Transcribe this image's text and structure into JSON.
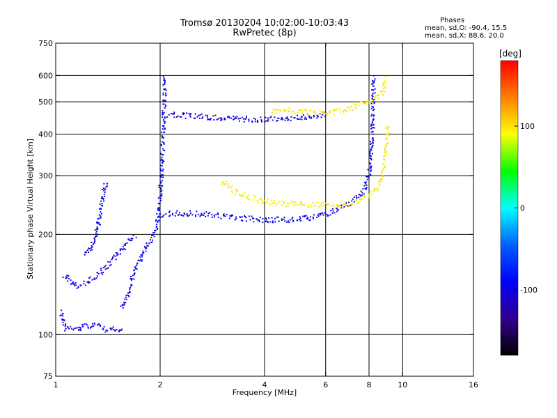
{
  "title": "Tromsø 20130204 10:02:00-10:03:43",
  "subtitle": "RwPretec (8p)",
  "phases": {
    "heading": "Phases",
    "o_line": "mean, sd,O: -90.4, 15.5",
    "x_line": "mean, sd,X: 88.6, 20.0"
  },
  "colorbar": {
    "label": "[deg]",
    "range": [
      -180,
      180
    ],
    "ticks": [
      {
        "value": 100,
        "label": "100"
      },
      {
        "value": 0,
        "label": "0"
      },
      {
        "value": -100,
        "label": "-100"
      }
    ],
    "colors": [
      "#ff0000",
      "#ff8000",
      "#ffff00",
      "#00ff00",
      "#00ffff",
      "#0060ff",
      "#0000ff",
      "#300090",
      "#000000"
    ]
  },
  "chart_data": {
    "type": "scatter",
    "xlabel": "Frequency [MHz]",
    "ylabel": "Stationary phase Virtual Height [km]",
    "xscale": "log",
    "yscale": "log",
    "xlim": [
      1,
      16
    ],
    "ylim": [
      75,
      750
    ],
    "x_ticks": [
      {
        "value": 1,
        "label": "1"
      },
      {
        "value": 2,
        "label": "2"
      },
      {
        "value": 4,
        "label": "4"
      },
      {
        "value": 6,
        "label": "6"
      },
      {
        "value": 8,
        "label": "8"
      },
      {
        "value": 10,
        "label": "10"
      },
      {
        "value": 16,
        "label": "16"
      }
    ],
    "y_ticks": [
      {
        "value": 75,
        "label": "75"
      },
      {
        "value": 100,
        "label": "100"
      },
      {
        "value": 200,
        "label": "200"
      },
      {
        "value": 300,
        "label": "300"
      },
      {
        "value": 400,
        "label": "400"
      },
      {
        "value": 500,
        "label": "500"
      },
      {
        "value": 600,
        "label": "600"
      },
      {
        "value": 750,
        "label": "750"
      }
    ],
    "grid_x": [
      2,
      4,
      6,
      8,
      10
    ],
    "grid_y": [
      100,
      200,
      300,
      400,
      500,
      600
    ],
    "series": [
      {
        "phase": -105,
        "points": [
          [
            1.03,
            118
          ],
          [
            1.06,
            104
          ],
          [
            1.1,
            105
          ],
          [
            1.15,
            104
          ],
          [
            1.2,
            108
          ],
          [
            1.25,
            106
          ],
          [
            1.3,
            108
          ],
          [
            1.35,
            105
          ],
          [
            1.4,
            104
          ],
          [
            1.45,
            104
          ],
          [
            1.5,
            103
          ],
          [
            1.55,
            102
          ]
        ]
      },
      {
        "phase": -100,
        "points": [
          [
            1.05,
            152
          ],
          [
            1.1,
            145
          ],
          [
            1.15,
            140
          ],
          [
            1.2,
            143
          ],
          [
            1.25,
            146
          ],
          [
            1.3,
            150
          ],
          [
            1.35,
            155
          ],
          [
            1.4,
            160
          ],
          [
            1.45,
            168
          ],
          [
            1.5,
            175
          ],
          [
            1.55,
            182
          ],
          [
            1.6,
            190
          ],
          [
            1.65,
            197
          ],
          [
            1.7,
            200
          ]
        ]
      },
      {
        "phase": -100,
        "points": [
          [
            1.2,
            175
          ],
          [
            1.25,
            180
          ],
          [
            1.28,
            190
          ],
          [
            1.32,
            215
          ],
          [
            1.35,
            250
          ],
          [
            1.38,
            280
          ],
          [
            1.4,
            290
          ]
        ]
      },
      {
        "phase": -95,
        "points": [
          [
            1.55,
            120
          ],
          [
            1.6,
            130
          ],
          [
            1.65,
            145
          ],
          [
            1.7,
            160
          ],
          [
            1.75,
            170
          ],
          [
            1.8,
            180
          ],
          [
            1.85,
            190
          ],
          [
            1.9,
            200
          ],
          [
            1.95,
            215
          ],
          [
            1.98,
            240
          ],
          [
            2.0,
            280
          ],
          [
            2.02,
            330
          ],
          [
            2.03,
            380
          ],
          [
            2.04,
            450
          ],
          [
            2.05,
            520
          ],
          [
            2.05,
            600
          ]
        ]
      },
      {
        "phase": -100,
        "points": [
          [
            2.0,
            230
          ],
          [
            2.2,
            232
          ],
          [
            2.5,
            232
          ],
          [
            2.8,
            230
          ],
          [
            3.0,
            228
          ],
          [
            3.5,
            224
          ],
          [
            4.0,
            222
          ],
          [
            4.5,
            222
          ],
          [
            5.0,
            223
          ],
          [
            5.5,
            226
          ],
          [
            6.0,
            232
          ],
          [
            6.5,
            240
          ],
          [
            7.0,
            250
          ],
          [
            7.5,
            262
          ],
          [
            7.8,
            280
          ],
          [
            8.0,
            310
          ],
          [
            8.1,
            360
          ],
          [
            8.15,
            420
          ],
          [
            8.2,
            500
          ],
          [
            8.2,
            600
          ]
        ]
      },
      {
        "phase": -105,
        "points": [
          [
            2.1,
            460
          ],
          [
            2.5,
            455
          ],
          [
            2.8,
            452
          ],
          [
            3.2,
            448
          ],
          [
            3.6,
            445
          ],
          [
            4.0,
            445
          ],
          [
            4.5,
            448
          ],
          [
            5.0,
            452
          ],
          [
            5.5,
            455
          ],
          [
            6.0,
            460
          ]
        ]
      },
      {
        "phase": 95,
        "points": [
          [
            3.0,
            290
          ],
          [
            3.3,
            270
          ],
          [
            3.6,
            260
          ],
          [
            4.0,
            253
          ],
          [
            4.5,
            248
          ],
          [
            5.0,
            247
          ],
          [
            5.5,
            247
          ],
          [
            6.0,
            246
          ],
          [
            6.5,
            245
          ],
          [
            7.0,
            248
          ],
          [
            7.5,
            255
          ],
          [
            8.0,
            262
          ],
          [
            8.4,
            275
          ],
          [
            8.7,
            300
          ],
          [
            8.9,
            350
          ],
          [
            9.0,
            400
          ],
          [
            9.0,
            430
          ]
        ]
      },
      {
        "phase": 95,
        "points": [
          [
            4.2,
            470
          ],
          [
            4.5,
            475
          ],
          [
            5.0,
            470
          ],
          [
            5.5,
            465
          ],
          [
            6.5,
            470
          ],
          [
            7.0,
            480
          ],
          [
            7.5,
            495
          ],
          [
            8.0,
            505
          ],
          [
            8.5,
            520
          ],
          [
            8.8,
            550
          ],
          [
            8.9,
            600
          ]
        ]
      }
    ]
  }
}
